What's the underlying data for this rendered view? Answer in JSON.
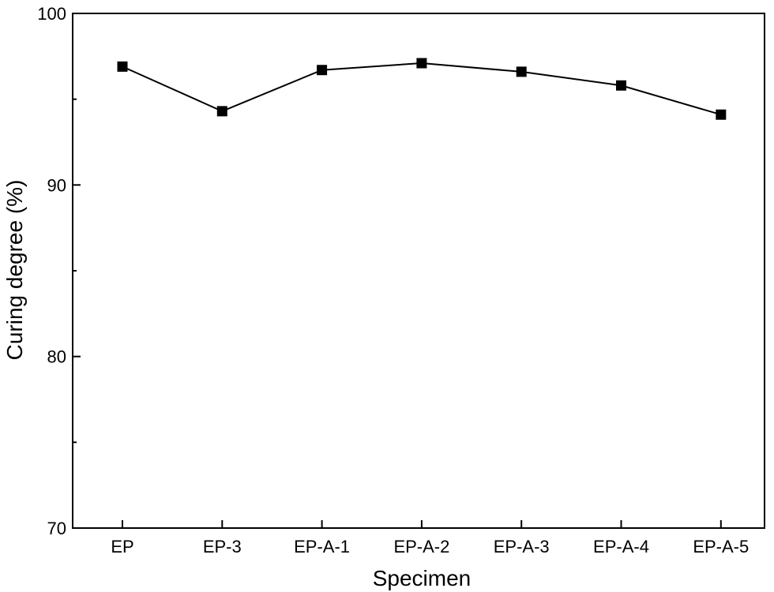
{
  "chart_data": {
    "type": "line",
    "title": "",
    "xlabel": "Specimen",
    "ylabel": "Curing degree (%)",
    "categories": [
      "EP",
      "EP-3",
      "EP-A-1",
      "EP-A-2",
      "EP-A-3",
      "EP-A-4",
      "EP-A-5"
    ],
    "series": [
      {
        "values": [
          96.9,
          94.3,
          96.7,
          97.1,
          96.6,
          95.8,
          94.1
        ],
        "marker": "square",
        "color": "#000000"
      }
    ],
    "ylim": [
      70,
      100
    ],
    "yticks": [
      70,
      80,
      90,
      100
    ],
    "y_minor_step": 5,
    "grid": false,
    "legend": "none"
  }
}
